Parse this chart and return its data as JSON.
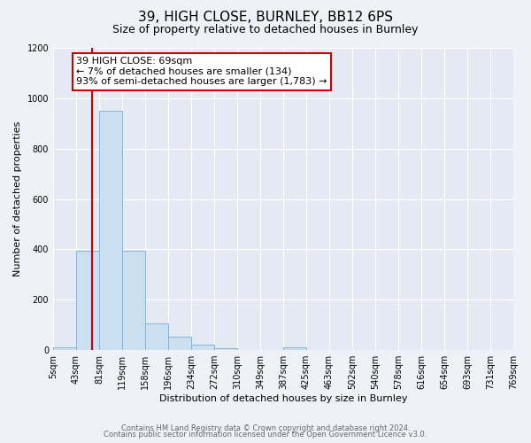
{
  "title": "39, HIGH CLOSE, BURNLEY, BB12 6PS",
  "subtitle": "Size of property relative to detached houses in Burnley",
  "xlabel": "Distribution of detached houses by size in Burnley",
  "ylabel": "Number of detached properties",
  "footer_lines": [
    "Contains HM Land Registry data © Crown copyright and database right 2024.",
    "Contains public sector information licensed under the Open Government Licence v3.0."
  ],
  "bin_labels": [
    "5sqm",
    "43sqm",
    "81sqm",
    "119sqm",
    "158sqm",
    "196sqm",
    "234sqm",
    "272sqm",
    "310sqm",
    "349sqm",
    "387sqm",
    "425sqm",
    "463sqm",
    "502sqm",
    "540sqm",
    "578sqm",
    "616sqm",
    "654sqm",
    "693sqm",
    "731sqm",
    "769sqm"
  ],
  "bar_values": [
    10,
    395,
    950,
    395,
    105,
    52,
    22,
    8,
    0,
    0,
    10,
    0,
    0,
    0,
    0,
    0,
    0,
    0,
    0,
    0
  ],
  "bar_color": "#ccdff0",
  "bar_edge_color": "#8ab4d4",
  "annotation_text": "39 HIGH CLOSE: 69sqm\n← 7% of detached houses are smaller (134)\n93% of semi-detached houses are larger (1,783) →",
  "annotation_box_color": "#ffffff",
  "annotation_box_edge_color": "#cc0000",
  "ylim": [
    0,
    1200
  ],
  "yticks": [
    0,
    200,
    400,
    600,
    800,
    1000,
    1200
  ],
  "background_color": "#eef2f8",
  "plot_background_color": "#e4eaf4",
  "red_line_color": "#cc0000",
  "grid_color": "#ffffff",
  "title_fontsize": 11,
  "subtitle_fontsize": 9,
  "axis_label_fontsize": 8,
  "tick_fontsize": 7,
  "annotation_fontsize": 8,
  "footer_fontsize": 6,
  "footer_color": "#666666"
}
